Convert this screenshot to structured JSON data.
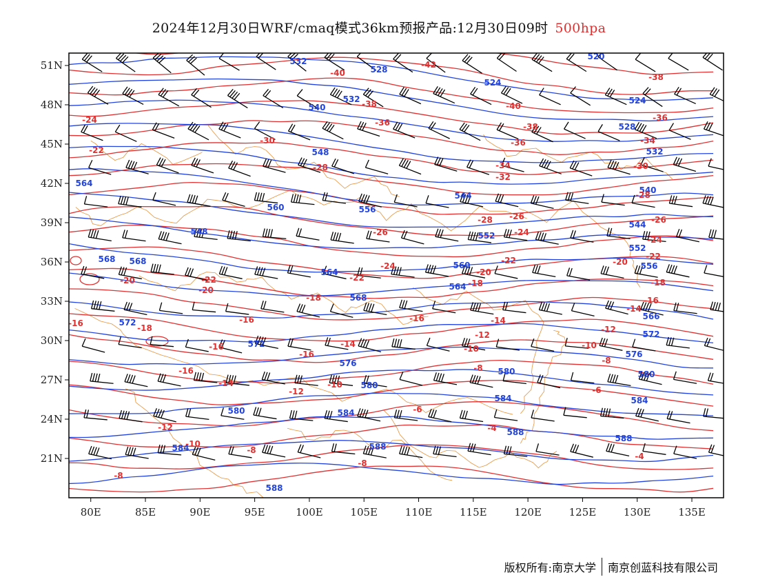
{
  "title": {
    "main": "2024年12月30日WRF/cmaq模式36km预报产品:12月30日09时",
    "level": "500hpa"
  },
  "axes": {
    "lat_labels": [
      "51N",
      "48N",
      "45N",
      "42N",
      "39N",
      "36N",
      "33N",
      "30N",
      "27N",
      "24N",
      "21N"
    ],
    "lon_labels": [
      "80E",
      "85E",
      "90E",
      "95E",
      "100E",
      "105E",
      "110E",
      "115E",
      "120E",
      "125E",
      "130E",
      "135E"
    ]
  },
  "colors": {
    "height_contour": "#2244dd",
    "temperature_contour": "#e03030",
    "boundary": "#e8923a",
    "wind_barb": "#000000"
  },
  "height_labels": [
    "520",
    "524",
    "528",
    "532",
    "536",
    "540",
    "544",
    "548",
    "552",
    "556",
    "560",
    "564",
    "568",
    "572",
    "576",
    "580",
    "584",
    "588"
  ],
  "temperature_labels": [
    "-42",
    "-40",
    "-38",
    "-36",
    "-34",
    "-32",
    "-30",
    "-28",
    "-26",
    "-24",
    "-22",
    "-20",
    "-18",
    "-16",
    "-14",
    "-12",
    "-10",
    "-8",
    "-6",
    "-4"
  ],
  "footer": {
    "copyright": "版权所有:南京大学",
    "company": "南京创蓝科技有限公司"
  }
}
